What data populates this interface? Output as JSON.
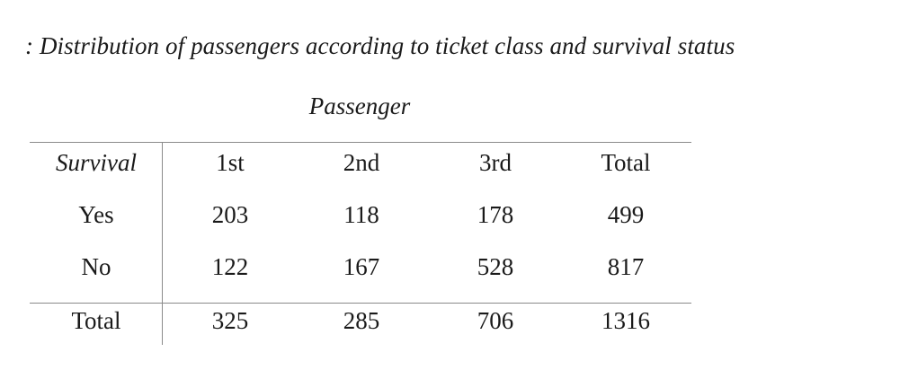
{
  "caption": ": Distribution of passengers according to ticket class and survival status",
  "group_header": "Passenger",
  "table": {
    "row_header": "Survival",
    "columns": [
      "1st",
      "2nd",
      "3rd",
      "Total"
    ],
    "rows": [
      {
        "label": "Yes",
        "values": [
          "203",
          "118",
          "178",
          "499"
        ]
      },
      {
        "label": "No",
        "values": [
          "122",
          "167",
          "528",
          "817"
        ]
      },
      {
        "label": "Total",
        "values": [
          "325",
          "285",
          "706",
          "1316"
        ]
      }
    ]
  }
}
